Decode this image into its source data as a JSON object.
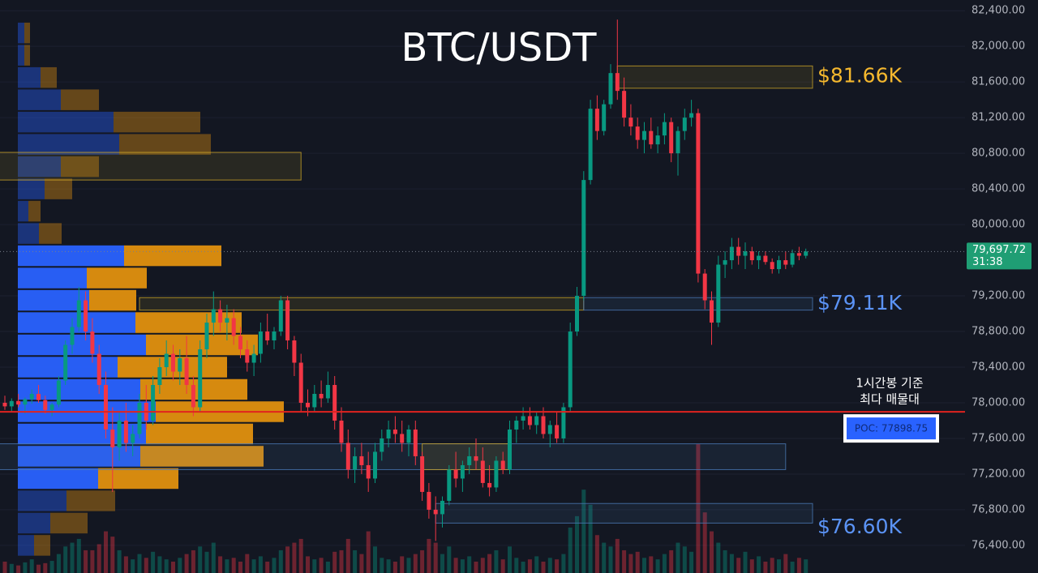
{
  "chart_data": {
    "type": "candlestick",
    "title": "BTC/USDT",
    "colors": {
      "up": "#089981",
      "down": "#f23645"
    },
    "grid": true,
    "ylim": [
      76090,
      82520
    ],
    "yticks": [
      {
        "value": 76400,
        "label": "76,400.00"
      },
      {
        "value": 76800,
        "label": "76,800.00"
      },
      {
        "value": 77200,
        "label": "77,200.00"
      },
      {
        "value": 77600,
        "label": "77,600.00"
      },
      {
        "value": 78000,
        "label": "78,000.00"
      },
      {
        "value": 78400,
        "label": "78,400.00"
      },
      {
        "value": 78800,
        "label": "78,800.00"
      },
      {
        "value": 79200,
        "label": "79,200.00"
      },
      {
        "value": 80000,
        "label": "80,000.00"
      },
      {
        "value": 80400,
        "label": "80,400.00"
      },
      {
        "value": 80800,
        "label": "80,800.00"
      },
      {
        "value": 81200,
        "label": "81,200.00"
      },
      {
        "value": 81600,
        "label": "81,600.00"
      },
      {
        "value": 82000,
        "label": "82,000.00"
      },
      {
        "value": 82400,
        "label": "82,400.00"
      }
    ],
    "ohlc": [
      [
        78000,
        78080,
        77920,
        77960
      ],
      [
        77960,
        78050,
        77900,
        78020
      ],
      [
        78020,
        78100,
        77950,
        77980
      ],
      [
        77980,
        78060,
        77880,
        78040
      ],
      [
        78040,
        78150,
        77990,
        78100
      ],
      [
        78100,
        78200,
        78000,
        78030
      ],
      [
        78030,
        78080,
        77880,
        77920
      ],
      [
        77920,
        78000,
        77850,
        77980
      ],
      [
        77980,
        78300,
        77950,
        78250
      ],
      [
        78250,
        78700,
        78200,
        78650
      ],
      [
        78650,
        78950,
        78550,
        78850
      ],
      [
        78850,
        79300,
        78800,
        79150
      ],
      [
        79150,
        79250,
        78700,
        78800
      ],
      [
        78800,
        78950,
        78450,
        78550
      ],
      [
        78550,
        78650,
        78100,
        78200
      ],
      [
        78200,
        78350,
        77600,
        77700
      ],
      [
        77700,
        77950,
        77000,
        77500
      ],
      [
        77500,
        77900,
        77350,
        77800
      ],
      [
        77800,
        78000,
        77450,
        77550
      ],
      [
        77550,
        77750,
        77400,
        77650
      ],
      [
        77650,
        78100,
        77600,
        78000
      ],
      [
        78000,
        78200,
        77700,
        77800
      ],
      [
        77800,
        78300,
        77750,
        78200
      ],
      [
        78200,
        78500,
        78100,
        78400
      ],
      [
        78400,
        78700,
        78300,
        78550
      ],
      [
        78550,
        78650,
        78250,
        78350
      ],
      [
        78350,
        78600,
        78200,
        78500
      ],
      [
        78500,
        78750,
        78100,
        78200
      ],
      [
        78200,
        78300,
        77850,
        77950
      ],
      [
        77950,
        78700,
        77900,
        78600
      ],
      [
        78600,
        79000,
        78500,
        78900
      ],
      [
        78900,
        79250,
        78750,
        79050
      ],
      [
        79050,
        79150,
        78800,
        78900
      ],
      [
        78900,
        79100,
        78700,
        78950
      ],
      [
        78950,
        79050,
        78650,
        78750
      ],
      [
        78750,
        78850,
        78500,
        78600
      ],
      [
        78600,
        78700,
        78350,
        78450
      ],
      [
        78450,
        78650,
        78300,
        78550
      ],
      [
        78550,
        78900,
        78450,
        78800
      ],
      [
        78800,
        79000,
        78650,
        78700
      ],
      [
        78700,
        78850,
        78600,
        78800
      ],
      [
        78800,
        79200,
        78750,
        79150
      ],
      [
        79150,
        79200,
        78600,
        78700
      ],
      [
        78700,
        78750,
        78300,
        78450
      ],
      [
        78450,
        78550,
        77900,
        78000
      ],
      [
        78000,
        78150,
        77850,
        77950
      ],
      [
        77950,
        78200,
        77900,
        78100
      ],
      [
        78100,
        78250,
        77950,
        78050
      ],
      [
        78050,
        78350,
        78000,
        78200
      ],
      [
        78200,
        78300,
        77700,
        77800
      ],
      [
        77800,
        77950,
        77450,
        77550
      ],
      [
        77550,
        77700,
        77150,
        77250
      ],
      [
        77250,
        77500,
        77100,
        77400
      ],
      [
        77400,
        77550,
        77200,
        77300
      ],
      [
        77300,
        77450,
        77000,
        77150
      ],
      [
        77150,
        77550,
        77100,
        77450
      ],
      [
        77450,
        77700,
        77350,
        77600
      ],
      [
        77600,
        77800,
        77500,
        77700
      ],
      [
        77700,
        77850,
        77550,
        77650
      ],
      [
        77650,
        77800,
        77450,
        77550
      ],
      [
        77550,
        77750,
        77400,
        77700
      ],
      [
        77700,
        77800,
        77300,
        77400
      ],
      [
        77400,
        77450,
        76900,
        77000
      ],
      [
        77000,
        77100,
        76700,
        76800
      ],
      [
        76800,
        76950,
        76450,
        76750
      ],
      [
        76750,
        76950,
        76600,
        76900
      ],
      [
        76900,
        77300,
        76850,
        77250
      ],
      [
        77250,
        77450,
        77050,
        77150
      ],
      [
        77150,
        77350,
        77000,
        77300
      ],
      [
        77300,
        77500,
        77200,
        77400
      ],
      [
        77400,
        77600,
        77250,
        77350
      ],
      [
        77350,
        77500,
        77050,
        77100
      ],
      [
        77100,
        77300,
        76950,
        77050
      ],
      [
        77050,
        77400,
        77000,
        77350
      ],
      [
        77350,
        77450,
        77200,
        77250
      ],
      [
        77250,
        77800,
        77200,
        77700
      ],
      [
        77700,
        77850,
        77550,
        77800
      ],
      [
        77800,
        77950,
        77700,
        77850
      ],
      [
        77850,
        77950,
        77700,
        77750
      ],
      [
        77750,
        77900,
        77650,
        77850
      ],
      [
        77850,
        77950,
        77600,
        77650
      ],
      [
        77650,
        77800,
        77500,
        77750
      ],
      [
        77750,
        77900,
        77550,
        77600
      ],
      [
        77600,
        78000,
        77550,
        77950
      ],
      [
        77950,
        78900,
        77900,
        78800
      ],
      [
        78800,
        79300,
        78750,
        79200
      ],
      [
        79200,
        80600,
        79150,
        80500
      ],
      [
        80500,
        81400,
        80450,
        81300
      ],
      [
        81300,
        81450,
        80950,
        81050
      ],
      [
        81050,
        81400,
        81000,
        81350
      ],
      [
        81350,
        81800,
        81300,
        81700
      ],
      [
        81700,
        82300,
        81400,
        81500
      ],
      [
        81500,
        81650,
        81100,
        81200
      ],
      [
        81200,
        81350,
        81000,
        81100
      ],
      [
        81100,
        81200,
        80850,
        80950
      ],
      [
        80950,
        81150,
        80800,
        81050
      ],
      [
        81050,
        81200,
        80850,
        80900
      ],
      [
        80900,
        81100,
        80800,
        81000
      ],
      [
        81000,
        81250,
        80900,
        81150
      ],
      [
        81150,
        81200,
        80700,
        80800
      ],
      [
        80800,
        81100,
        80550,
        81050
      ],
      [
        81050,
        81300,
        80950,
        81200
      ],
      [
        81200,
        81400,
        81100,
        81250
      ],
      [
        81250,
        81300,
        79350,
        79450
      ],
      [
        79450,
        79500,
        79050,
        79150
      ],
      [
        79150,
        79250,
        78650,
        78900
      ],
      [
        78900,
        79650,
        78850,
        79550
      ],
      [
        79550,
        79700,
        79400,
        79600
      ],
      [
        79600,
        79850,
        79500,
        79750
      ],
      [
        79750,
        79850,
        79550,
        79650
      ],
      [
        79650,
        79800,
        79500,
        79700
      ],
      [
        79700,
        79750,
        79550,
        79600
      ],
      [
        79600,
        79700,
        79500,
        79650
      ],
      [
        79650,
        79700,
        79550,
        79580
      ],
      [
        79580,
        79620,
        79450,
        79500
      ],
      [
        79500,
        79650,
        79450,
        79600
      ],
      [
        79600,
        79700,
        79500,
        79550
      ],
      [
        79550,
        79720,
        79520,
        79680
      ],
      [
        79680,
        79750,
        79600,
        79650
      ],
      [
        79650,
        79730,
        79620,
        79697.72
      ]
    ],
    "volume_ylim": [
      0,
      200
    ],
    "volume": [
      15,
      12,
      10,
      14,
      18,
      11,
      13,
      16,
      25,
      35,
      40,
      45,
      30,
      30,
      38,
      55,
      48,
      30,
      22,
      18,
      25,
      20,
      28,
      22,
      18,
      15,
      20,
      25,
      30,
      35,
      28,
      40,
      22,
      18,
      20,
      15,
      25,
      18,
      22,
      15,
      20,
      30,
      35,
      40,
      45,
      22,
      18,
      20,
      15,
      28,
      30,
      45,
      30,
      25,
      55,
      35,
      20,
      18,
      15,
      22,
      20,
      25,
      30,
      45,
      40,
      25,
      35,
      20,
      18,
      22,
      15,
      20,
      25,
      30,
      18,
      35,
      20,
      15,
      18,
      22,
      15,
      20,
      18,
      25,
      60,
      75,
      110,
      90,
      50,
      40,
      35,
      45,
      30,
      25,
      28,
      20,
      22,
      18,
      25,
      30,
      40,
      35,
      28,
      170,
      80,
      55,
      40,
      30,
      25,
      20,
      28,
      18,
      22,
      15,
      20,
      18,
      25,
      15,
      20,
      18
    ],
    "volume_profile": {
      "xlim": [
        0,
        400
      ],
      "bins": [
        76275,
        76525,
        76775,
        77025,
        77275,
        77525,
        77775,
        78025,
        78275,
        78525,
        78775,
        79025,
        79275,
        79525,
        79775,
        80025,
        80275,
        80525,
        80775,
        81025,
        81275,
        81525,
        81775,
        82025,
        82275
      ],
      "buy": [
        20,
        40,
        60,
        99,
        151,
        158,
        170,
        151,
        123,
        158,
        145,
        88,
        85,
        131,
        26,
        13,
        33,
        53,
        125,
        118,
        53,
        28,
        8,
        8
      ],
      "sell": [
        20,
        46,
        60,
        99,
        152,
        132,
        158,
        132,
        135,
        138,
        131,
        58,
        74,
        120,
        28,
        15,
        34,
        47,
        113,
        107,
        47,
        20,
        7,
        7
      ],
      "buy_color": "#2962ff",
      "sell_color": "#e0900f",
      "value_area": {
        "low": 77025,
        "high": 79775
      }
    },
    "zones": [
      {
        "low": 80500,
        "high": 80810,
        "start": -1,
        "end": 44,
        "color": "#c9a227"
      },
      {
        "low": 81530,
        "high": 81780,
        "start": 91,
        "end": 120,
        "color": "#c9a227",
        "level": 81660,
        "label": "$81.66K",
        "label_color": "#f5b82e"
      },
      {
        "low": 79040,
        "high": 79180,
        "start": 20,
        "end": 86,
        "color": "#c9a227"
      },
      {
        "low": 79040,
        "high": 79180,
        "start": 86,
        "end": 120,
        "color": "#4a78b5",
        "level": 79110,
        "label": "$79.11K",
        "label_color": "#5b93f5"
      },
      {
        "low": 77250,
        "high": 77540,
        "start": -1,
        "end": 116,
        "color": "#4a78b5"
      },
      {
        "low": 77250,
        "high": 77540,
        "start": 62,
        "end": 75,
        "color": "#c9a227"
      },
      {
        "low": 76650,
        "high": 76870,
        "start": 64,
        "end": 120,
        "color": "#4a78b5",
        "level": 76600,
        "label": "$76.60K",
        "label_color": "#5b93f5"
      }
    ],
    "poc": {
      "value": 77898.75,
      "label": "POC: 77898.75",
      "color": "#e0231f",
      "annotation": [
        "1시간봉 기준",
        "최다 매물대"
      ]
    },
    "last_price": {
      "value": 79697.72,
      "label": "79,697.72",
      "countdown": "31:38",
      "color": "#1f9e74"
    }
  }
}
